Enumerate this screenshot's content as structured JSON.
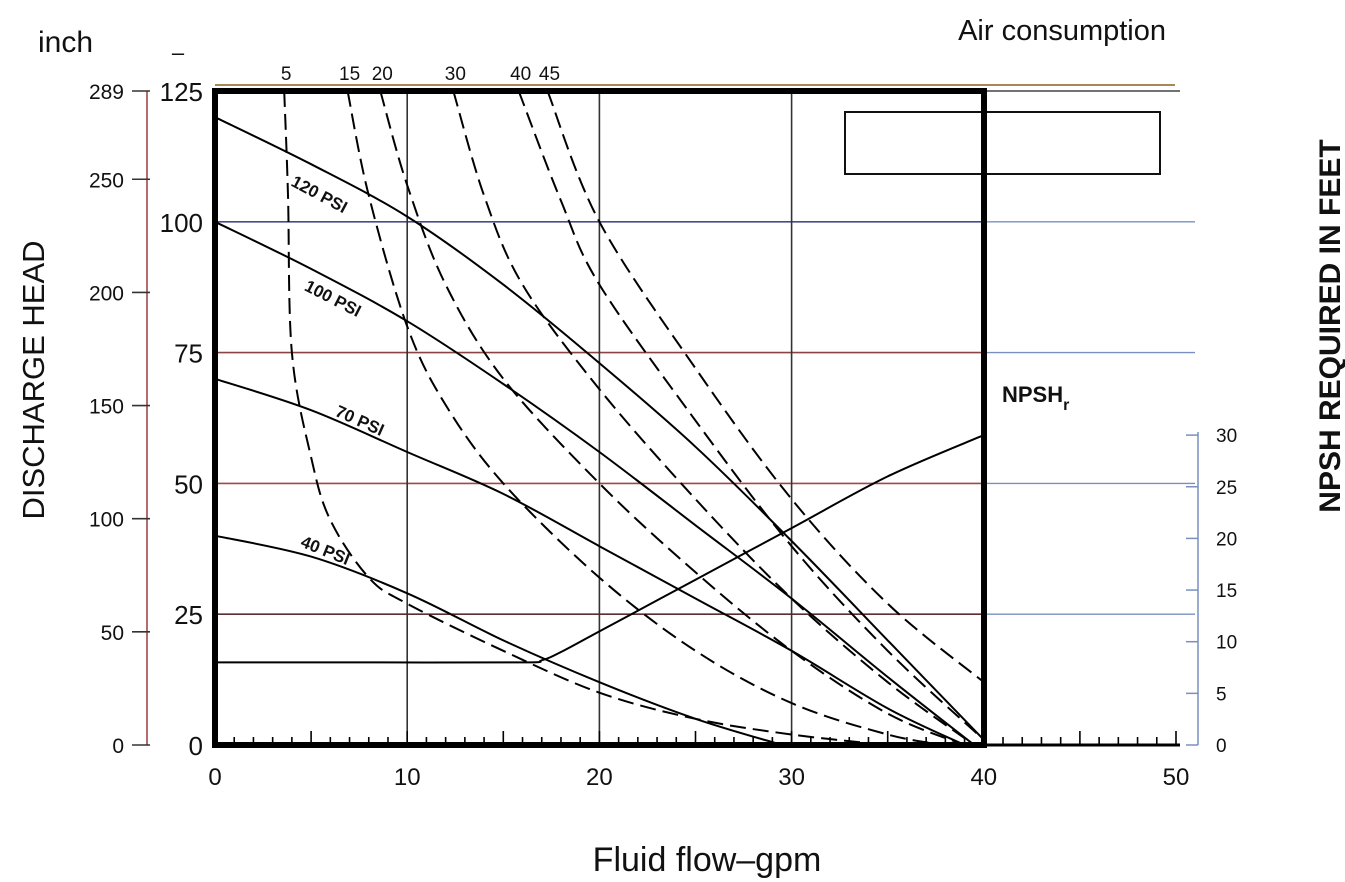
{
  "chart_data": {
    "type": "line",
    "title": "",
    "xlabel": "Fluid flow–gpm",
    "ylabel_left": "DISCHARGE HEAD",
    "ylabel_right": "NPSH REQUIRED IN FEET",
    "unit_left_outer": "inch",
    "unit_left_inner": "–",
    "air_consumption_label": "Air consumption",
    "xlim": [
      0,
      50
    ],
    "ylim": [
      0,
      125
    ],
    "x_ticks": [
      "0",
      "10",
      "20",
      "30",
      "40",
      "50"
    ],
    "y_ticks": [
      "0",
      "25",
      "50",
      "75",
      "100",
      "125"
    ],
    "y_outer_ticks": [
      "0",
      "50",
      "100",
      "150",
      "200",
      "250",
      "289"
    ],
    "npsh_ticks": [
      "0",
      "5",
      "10",
      "15",
      "20",
      "25",
      "30"
    ],
    "npsh_range": [
      0,
      30
    ],
    "grid": true,
    "pressure_curves": [
      {
        "name": "120 PSI",
        "x": [
          0,
          5,
          10,
          15,
          20,
          25,
          30,
          35,
          40
        ],
        "y": [
          120,
          111,
          101,
          88,
          73,
          57,
          39,
          20,
          1
        ]
      },
      {
        "name": "100 PSI",
        "x": [
          0,
          5,
          10,
          15,
          20,
          25,
          30,
          35,
          39.5
        ],
        "y": [
          100,
          91,
          81,
          69,
          56,
          42,
          28,
          13,
          0
        ]
      },
      {
        "name": "70 PSI",
        "x": [
          0,
          5,
          10,
          15,
          20,
          25,
          30,
          35,
          39
        ],
        "y": [
          70,
          64,
          56,
          48,
          38,
          28,
          18,
          7,
          0
        ]
      },
      {
        "name": "40 PSI",
        "x": [
          0,
          5,
          10,
          15,
          20,
          25,
          29.5
        ],
        "y": [
          40,
          36,
          29,
          20,
          12,
          5,
          0
        ]
      }
    ],
    "air_consumption_curves": [
      {
        "name": "5",
        "x": [
          3.6,
          3.8,
          4,
          5,
          6,
          8,
          10,
          15,
          20,
          25,
          30,
          35
        ],
        "y": [
          125,
          105,
          75,
          55,
          43,
          32,
          27,
          18,
          10,
          5,
          2,
          0
        ]
      },
      {
        "name": "15",
        "x": [
          6.9,
          8,
          10,
          12,
          15,
          20,
          25,
          30,
          35,
          38
        ],
        "y": [
          125,
          105,
          80,
          65,
          50,
          32,
          18,
          8,
          2,
          0
        ]
      },
      {
        "name": "20",
        "x": [
          8.6,
          10,
          12,
          15,
          20,
          25,
          30,
          35,
          39
        ],
        "y": [
          125,
          107,
          88,
          70,
          50,
          33,
          18,
          6,
          0
        ]
      },
      {
        "name": "30",
        "x": [
          12.4,
          14,
          16,
          20,
          25,
          30,
          35,
          39.5
        ],
        "y": [
          125,
          105,
          88,
          68,
          47,
          28,
          12,
          0
        ]
      },
      {
        "name": "40",
        "x": [
          15.8,
          18,
          20,
          25,
          30,
          35,
          40
        ],
        "y": [
          125,
          104,
          88,
          62,
          38,
          18,
          1
        ]
      },
      {
        "name": "45",
        "x": [
          17.3,
          20,
          25,
          30,
          35,
          40
        ],
        "y": [
          125,
          100,
          72,
          47,
          27,
          12
        ]
      }
    ],
    "npsh_curve": {
      "name": "NPSHr",
      "label_main": "NPSH",
      "label_sub": "r",
      "x": [
        0,
        8,
        16,
        17,
        18,
        20,
        25,
        30,
        35,
        40
      ],
      "y_npsh": [
        8,
        8,
        8,
        8.2,
        9,
        11,
        16,
        21,
        26,
        30
      ]
    },
    "pressure_labels": [
      "120 PSI",
      "100 PSI",
      "70 PSI",
      "40 PSI"
    ]
  }
}
